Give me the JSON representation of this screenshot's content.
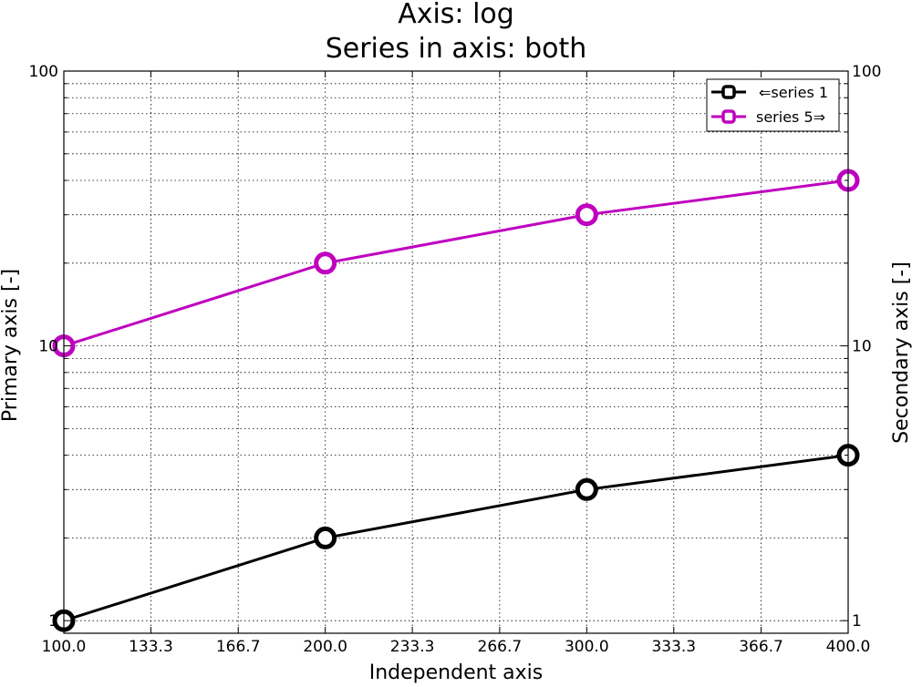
{
  "chart_data": {
    "type": "line",
    "title": "Axis: log",
    "subtitle": "Series in axis: both",
    "xlabel": "Independent axis",
    "ylabel": "Primary axis [-]",
    "y2label": "Secondary axis [-]",
    "xlim": [
      100,
      400
    ],
    "ylim": [
      0.9,
      100
    ],
    "y2lim": [
      0.9,
      100
    ],
    "yscale": "log",
    "y2scale": "log",
    "grid": true,
    "x_ticks": [
      "100.0",
      "133.3",
      "166.7",
      "200.0",
      "233.3",
      "266.7",
      "300.0",
      "333.3",
      "366.7",
      "400.0"
    ],
    "y_ticks": [
      "1",
      "10",
      "100"
    ],
    "y2_ticks": [
      "1",
      "10",
      "100"
    ],
    "legend_position": "top-right",
    "series": [
      {
        "name": "⇐series 1",
        "axis": "primary",
        "color": "#000000",
        "x": [
          100,
          200,
          300,
          400
        ],
        "values": [
          1,
          2,
          3,
          4
        ]
      },
      {
        "name": "series 5⇒",
        "axis": "secondary",
        "color": "#bf00bf",
        "x": [
          100,
          200,
          300,
          400
        ],
        "values": [
          10,
          20,
          30,
          40
        ]
      }
    ]
  }
}
